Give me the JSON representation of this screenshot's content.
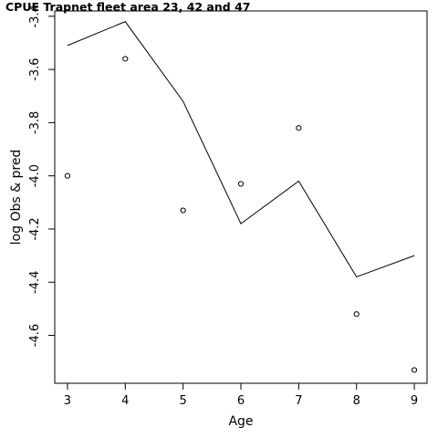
{
  "chart_data": {
    "type": "line",
    "title": "CPUE Trapnet fleet area 23, 42 and 47",
    "xlabel": "Age",
    "ylabel": "log Obs & pred",
    "x": [
      3,
      4,
      5,
      6,
      7,
      8,
      9
    ],
    "xlim": [
      2.78,
      9.22
    ],
    "ylim": [
      -4.78,
      -3.38
    ],
    "xticks": [
      3,
      4,
      5,
      6,
      7,
      8,
      9
    ],
    "yticks": [
      -3.4,
      -3.6,
      -3.8,
      -4.0,
      -4.2,
      -4.4,
      -4.6
    ],
    "ytick_labels": [
      "-3.4",
      "-3.6",
      "-3.8",
      "-4.0",
      "-4.2",
      "-4.4",
      "-4.6"
    ],
    "series": [
      {
        "style": "line",
        "values": [
          -3.51,
          -3.42,
          -3.72,
          -4.18,
          -4.02,
          -4.38,
          -4.3
        ]
      },
      {
        "style": "points",
        "values": [
          -4.0,
          -3.56,
          -4.13,
          -4.03,
          -3.82,
          -4.52,
          -4.73
        ]
      }
    ],
    "grid": false
  }
}
